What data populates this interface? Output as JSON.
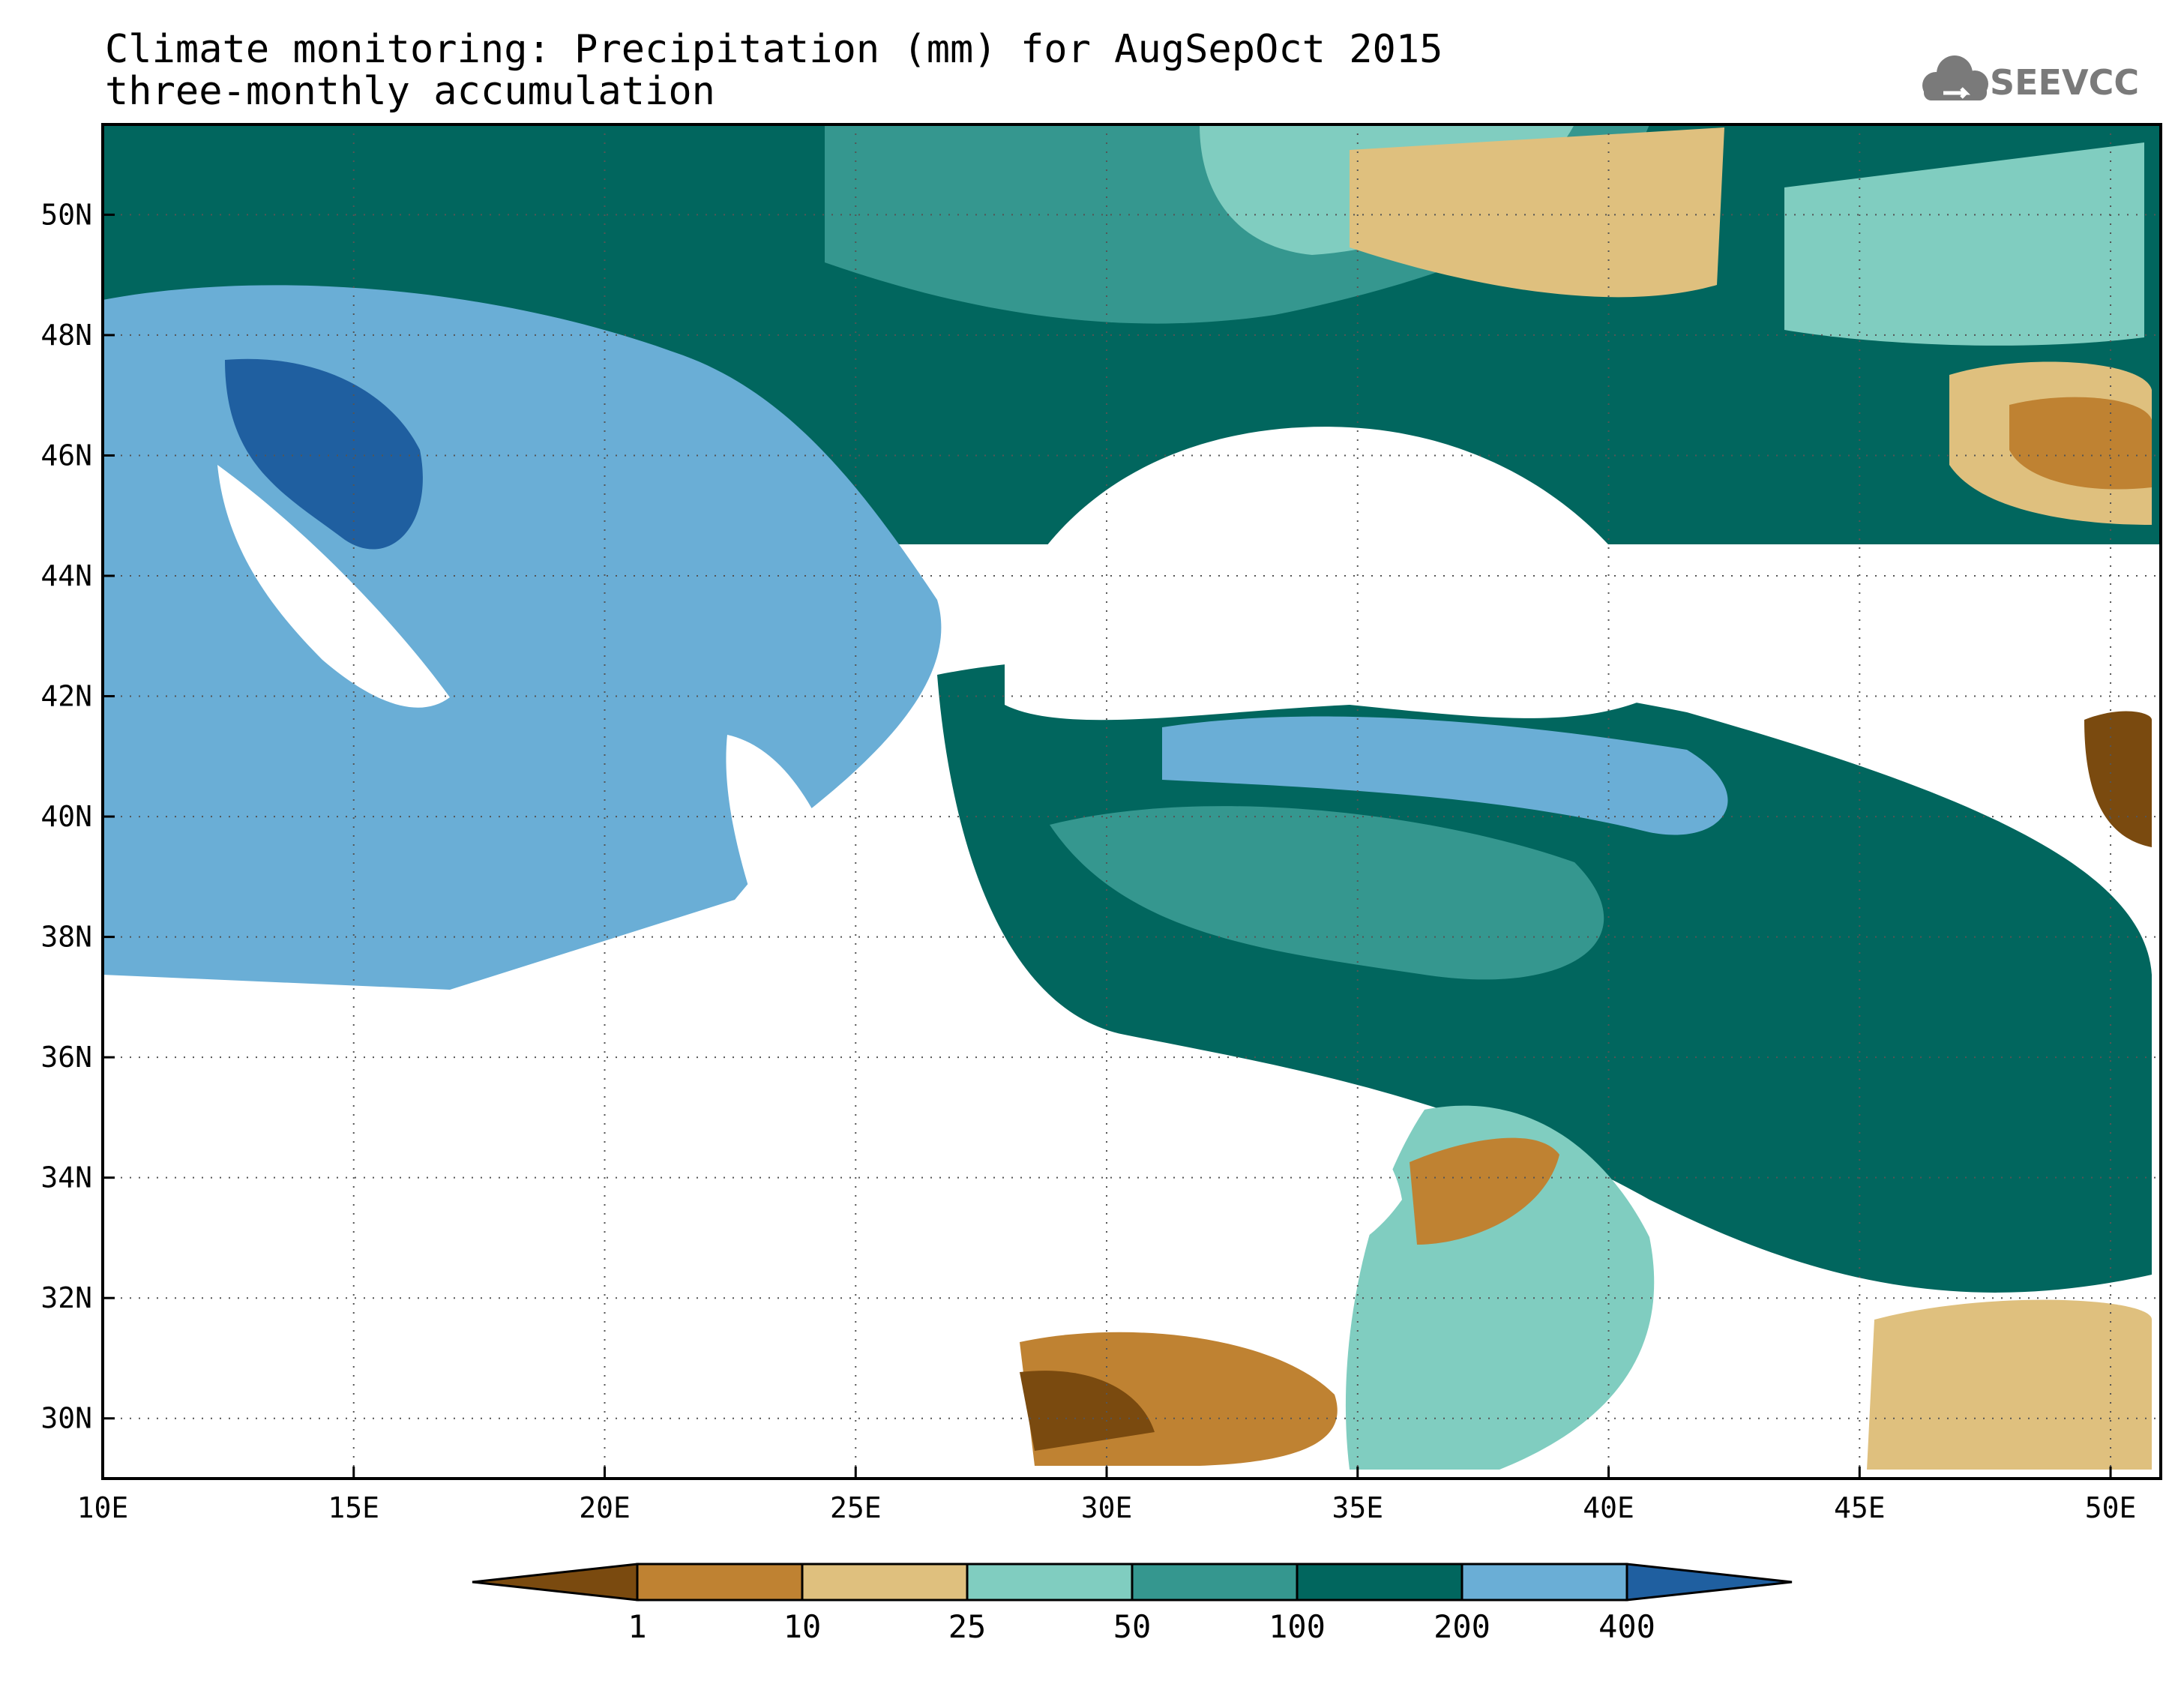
{
  "title_line1": "Climate monitoring: Precipitation (mm) for AugSepOct 2015",
  "title_line2": "three-monthly accumulation",
  "logo_text": "SEEVCCC",
  "logo_icon": "cloud-icon",
  "map": {
    "lon_range": [
      10,
      51
    ],
    "lat_range": [
      29,
      51.5
    ],
    "x_tick_labels": [
      "10E",
      "15E",
      "20E",
      "25E",
      "30E",
      "35E",
      "40E",
      "45E",
      "50E"
    ],
    "y_tick_labels": [
      "30N",
      "32N",
      "34N",
      "36N",
      "38N",
      "40N",
      "42N",
      "44N",
      "46N",
      "48N",
      "50N"
    ],
    "grid": "dotted"
  },
  "legend": {
    "thresholds": [
      "1",
      "10",
      "25",
      "50",
      "100",
      "200",
      "400"
    ],
    "colors": [
      "#7a4a0f",
      "#bf8232",
      "#dfc07e",
      "#80cdc0",
      "#35978f",
      "#01665e",
      "#6aaed6",
      "#1f5fa0"
    ]
  },
  "chart_data": {
    "type": "heatmap",
    "title": "Climate monitoring: Precipitation (mm) for AugSepOct 2015",
    "subtitle": "three-monthly accumulation",
    "unit": "mm",
    "bins": [
      "<1",
      "1-10",
      "10-25",
      "25-50",
      "50-100",
      "100-200",
      "200-400",
      ">400"
    ],
    "xlim": [
      10,
      51
    ],
    "ylim": [
      29,
      51.5
    ]
  }
}
